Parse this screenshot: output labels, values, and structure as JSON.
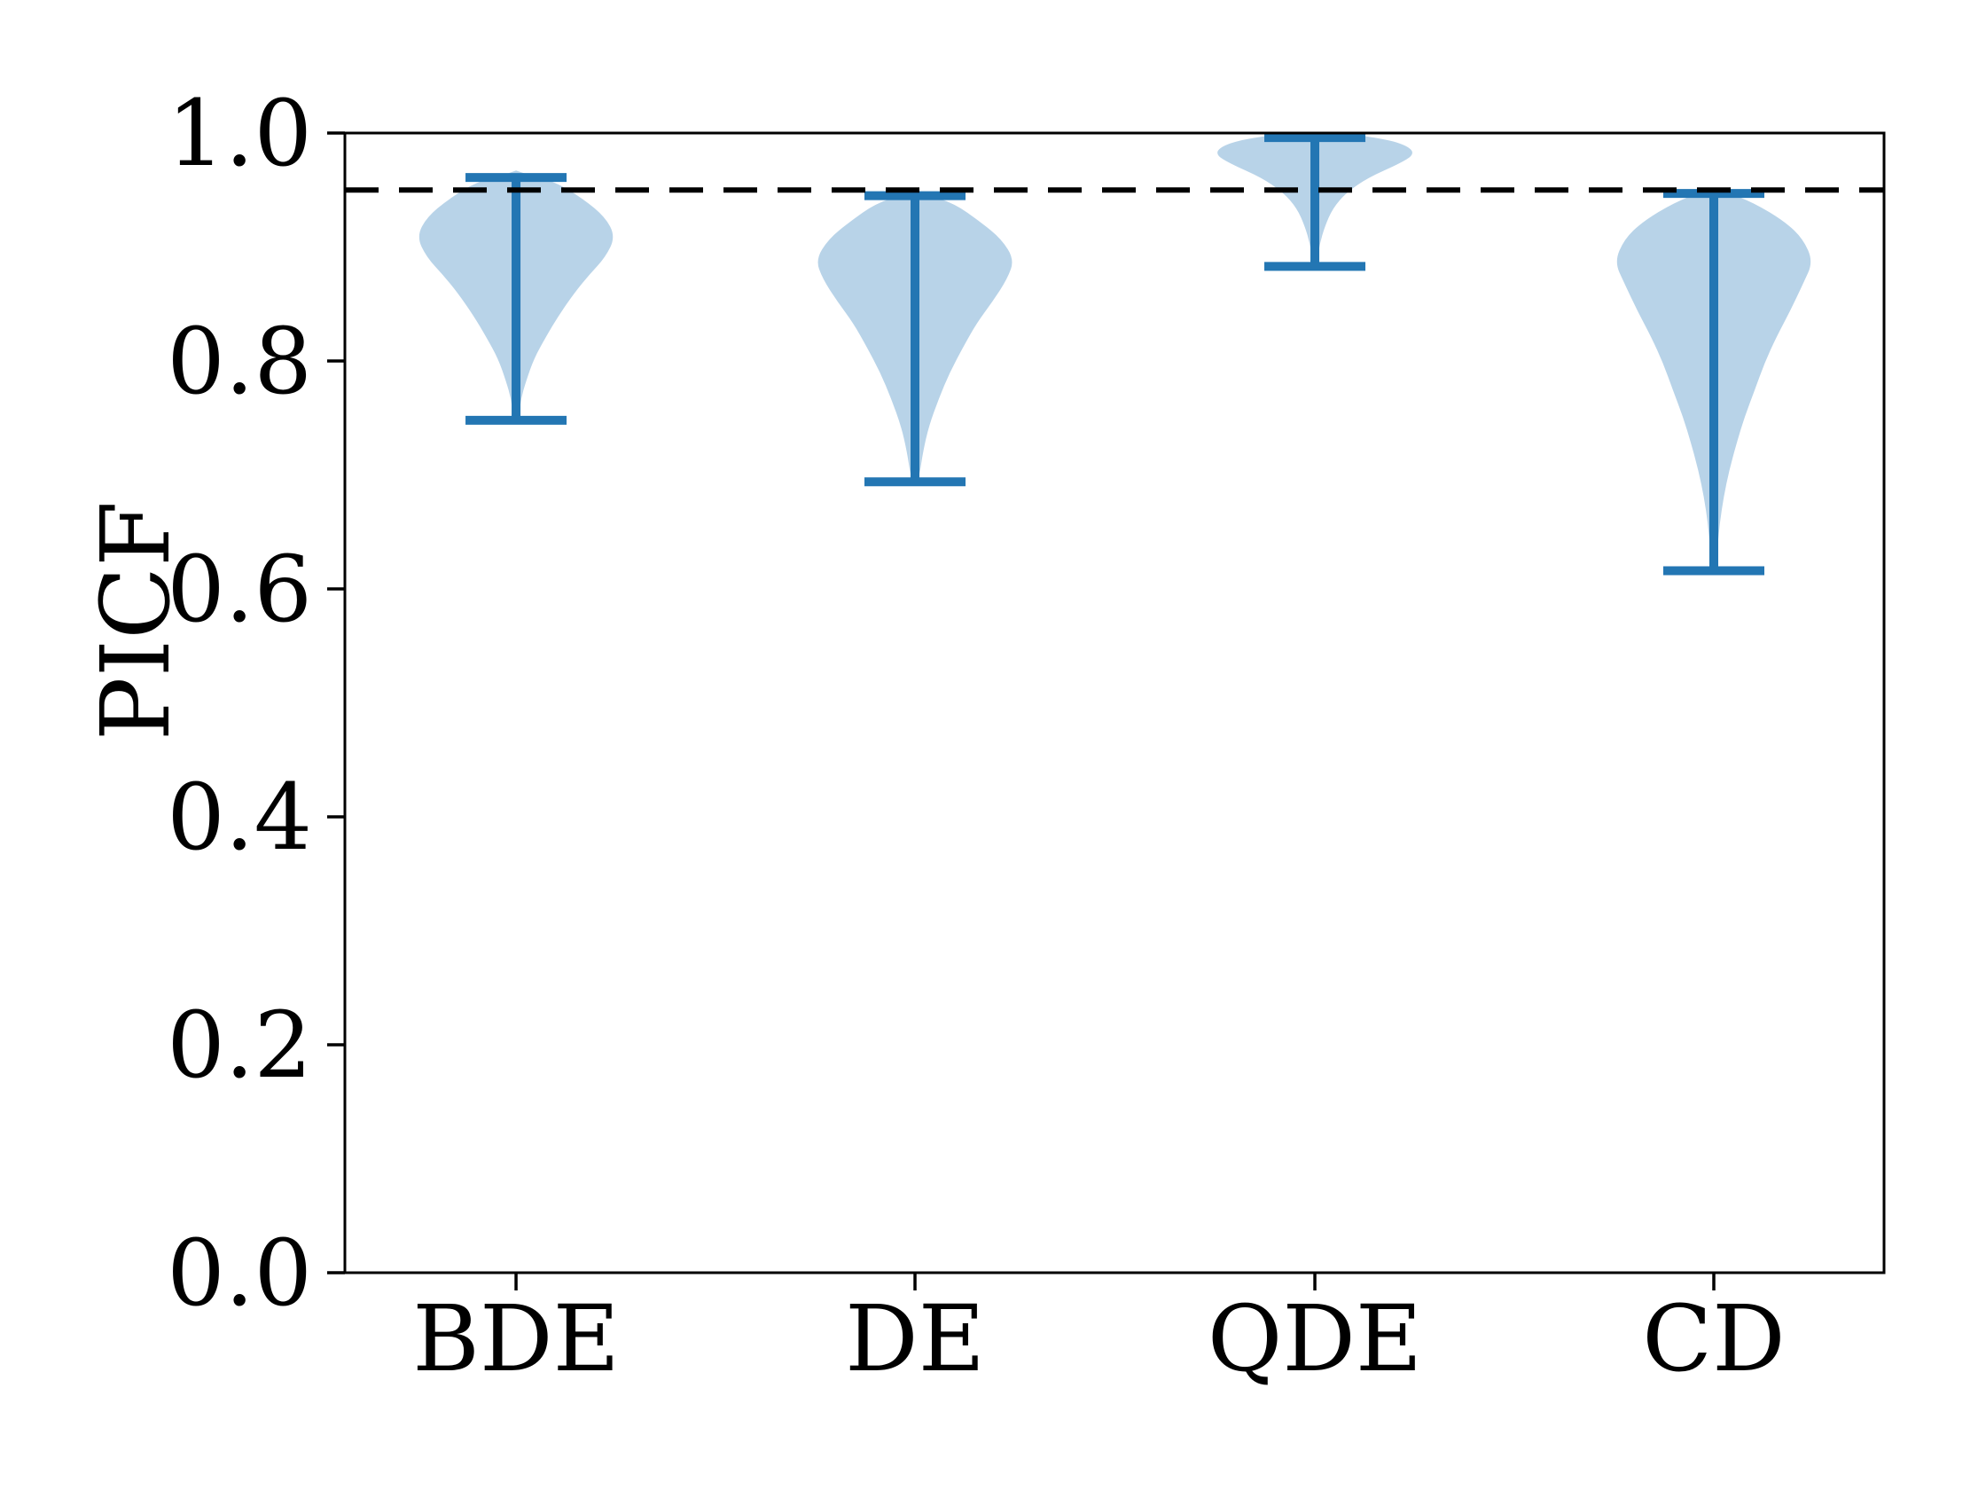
{
  "chart_data": {
    "type": "violin",
    "title": "",
    "xlabel": "",
    "ylabel": "PICF",
    "categories": [
      "BDE",
      "DE",
      "QDE",
      "CD"
    ],
    "ylim": [
      0.0,
      1.0
    ],
    "yticks": [
      0.0,
      0.2,
      0.4,
      0.6,
      0.8,
      1.0
    ],
    "ytick_labels": [
      "0.0",
      "0.2",
      "0.4",
      "0.6",
      "0.8",
      "1.0"
    ],
    "grid": false,
    "legend": null,
    "reference_line": {
      "y": 0.95,
      "style": "dashed",
      "color": "#000000"
    },
    "colors": {
      "violin_fill": "#b8d3e8",
      "violin_edge": "#2376b3",
      "axis": "#000000",
      "background": "#ffffff"
    },
    "profile_format": "[picf_value, relative_half_width_0_to_1]",
    "series": [
      {
        "name": "BDE",
        "min": 0.748,
        "max": 0.961,
        "peak_density_at": 0.909,
        "profile": [
          [
            0.964,
            0.1
          ],
          [
            0.957,
            0.4
          ],
          [
            0.942,
            0.68
          ],
          [
            0.926,
            0.9
          ],
          [
            0.909,
            1.0
          ],
          [
            0.891,
            0.9
          ],
          [
            0.876,
            0.74
          ],
          [
            0.86,
            0.59
          ],
          [
            0.84,
            0.43
          ],
          [
            0.821,
            0.3
          ],
          [
            0.802,
            0.18
          ],
          [
            0.782,
            0.1
          ],
          [
            0.767,
            0.05
          ],
          [
            0.752,
            0.03
          ]
        ]
      },
      {
        "name": "DE",
        "min": 0.694,
        "max": 0.945,
        "peak_density_at": 0.889,
        "profile": [
          [
            0.947,
            0.09
          ],
          [
            0.938,
            0.4
          ],
          [
            0.922,
            0.66
          ],
          [
            0.907,
            0.87
          ],
          [
            0.889,
            1.0
          ],
          [
            0.872,
            0.93
          ],
          [
            0.852,
            0.78
          ],
          [
            0.833,
            0.62
          ],
          [
            0.813,
            0.49
          ],
          [
            0.79,
            0.35
          ],
          [
            0.767,
            0.24
          ],
          [
            0.743,
            0.14
          ],
          [
            0.72,
            0.08
          ],
          [
            0.697,
            0.04
          ]
        ]
      },
      {
        "name": "QDE",
        "min": 0.883,
        "max": 0.996,
        "peak_density_at": 0.981,
        "profile": [
          [
            0.999,
            0.36
          ],
          [
            0.994,
            0.75
          ],
          [
            0.988,
            0.95
          ],
          [
            0.981,
            1.0
          ],
          [
            0.973,
            0.85
          ],
          [
            0.961,
            0.54
          ],
          [
            0.948,
            0.32
          ],
          [
            0.934,
            0.18
          ],
          [
            0.918,
            0.1
          ],
          [
            0.903,
            0.05
          ],
          [
            0.889,
            0.025
          ]
        ]
      },
      {
        "name": "CD",
        "min": 0.616,
        "max": 0.947,
        "peak_density_at": 0.887,
        "profile": [
          [
            0.949,
            0.1
          ],
          [
            0.939,
            0.4
          ],
          [
            0.922,
            0.72
          ],
          [
            0.907,
            0.9
          ],
          [
            0.887,
            1.0
          ],
          [
            0.868,
            0.9
          ],
          [
            0.844,
            0.77
          ],
          [
            0.821,
            0.63
          ],
          [
            0.798,
            0.51
          ],
          [
            0.774,
            0.41
          ],
          [
            0.751,
            0.31
          ],
          [
            0.728,
            0.23
          ],
          [
            0.704,
            0.155
          ],
          [
            0.681,
            0.1
          ],
          [
            0.658,
            0.06
          ],
          [
            0.634,
            0.035
          ],
          [
            0.619,
            0.02
          ]
        ]
      }
    ]
  }
}
